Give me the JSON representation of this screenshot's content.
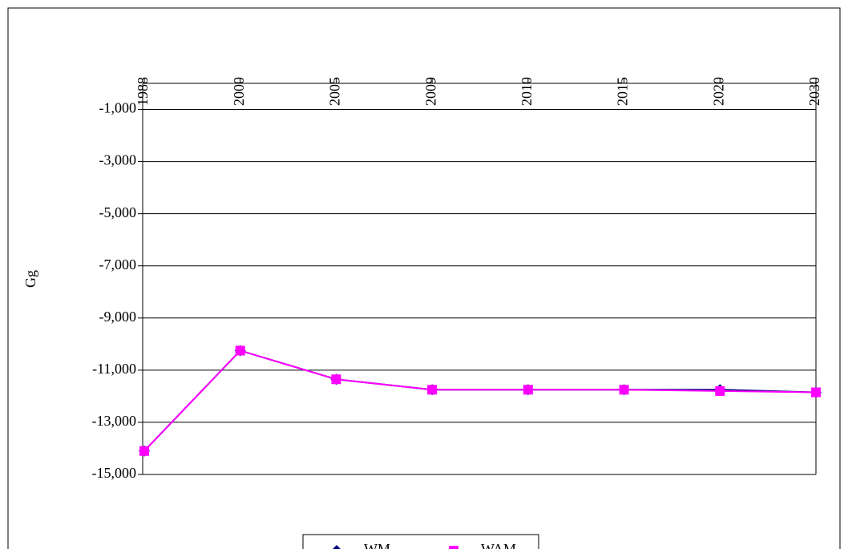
{
  "chart_data": {
    "type": "line",
    "y_label": "Gg",
    "categories": [
      "1988",
      "2000",
      "2005",
      "2009",
      "2010",
      "2015",
      "2020",
      "2030"
    ],
    "series": [
      {
        "name": "WM",
        "color": "#000080",
        "marker": "diamond",
        "values": [
          -14100,
          -10250,
          -11350,
          -11750,
          -11750,
          -11750,
          -11750,
          -11850
        ]
      },
      {
        "name": "WAM",
        "color": "#ff00ff",
        "marker": "square",
        "values": [
          -14100,
          -10250,
          -11350,
          -11750,
          -11750,
          -11750,
          -11800,
          -11850
        ]
      }
    ],
    "ylim": [
      -15000,
      0
    ],
    "yticks": [
      {
        "value": -15000,
        "label": "-15,000"
      },
      {
        "value": -13000,
        "label": "-13,000"
      },
      {
        "value": -11000,
        "label": "-11,000"
      },
      {
        "value": -9000,
        "label": "-9,000"
      },
      {
        "value": -7000,
        "label": "-7,000"
      },
      {
        "value": -5000,
        "label": "-5,000"
      },
      {
        "value": -3000,
        "label": "-3,000"
      },
      {
        "value": -1000,
        "label": "-1,000"
      }
    ],
    "grid": true,
    "legend": "bottom"
  }
}
